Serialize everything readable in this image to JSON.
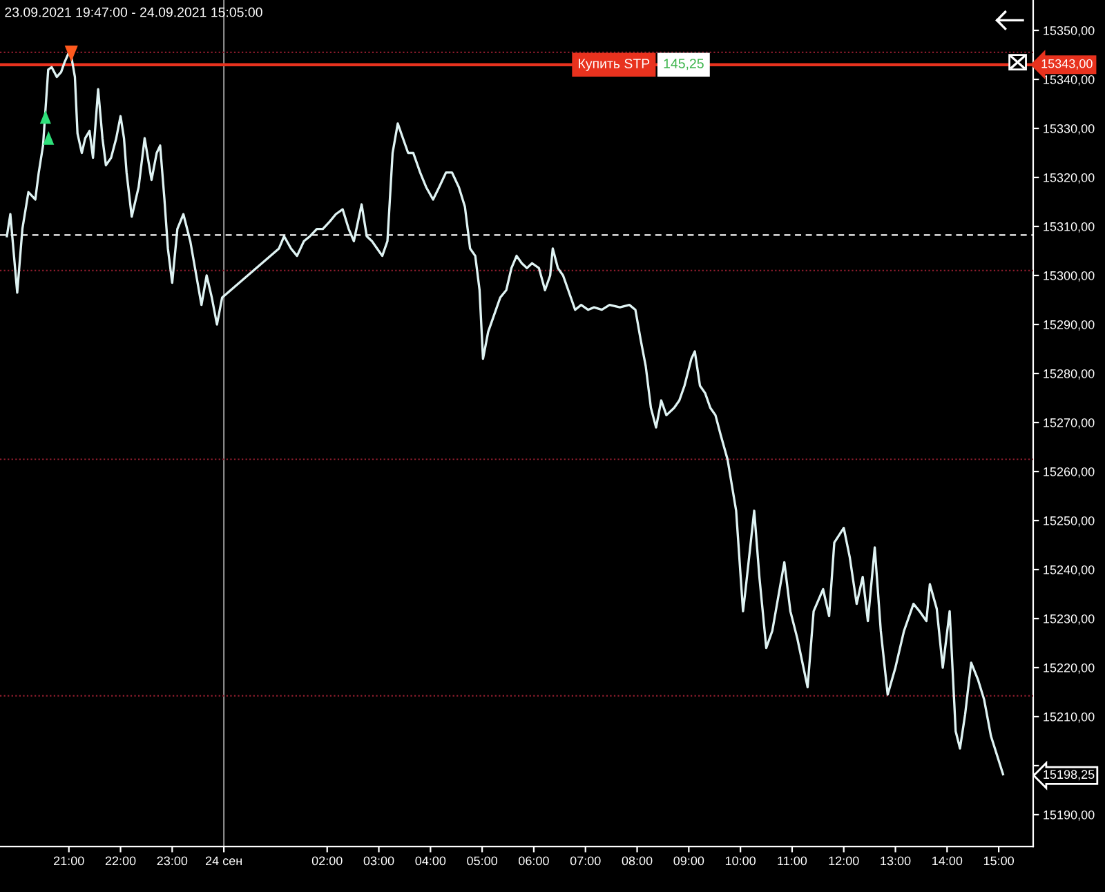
{
  "chart_data": {
    "type": "line",
    "title": "23.09.2021 19:47:00 - 24.09.2021 15:05:00",
    "x": [
      "2021-09-23T19:48",
      "2021-09-23T19:52",
      "2021-09-23T20:00",
      "2021-09-23T20:06",
      "2021-09-23T20:13",
      "2021-09-23T20:21",
      "2021-09-23T20:25",
      "2021-09-23T20:30",
      "2021-09-23T20:36",
      "2021-09-23T20:40",
      "2021-09-23T20:46",
      "2021-09-23T20:51",
      "2021-09-23T20:55",
      "2021-09-23T21:00",
      "2021-09-23T21:03",
      "2021-09-23T21:07",
      "2021-09-23T21:10",
      "2021-09-23T21:15",
      "2021-09-23T21:19",
      "2021-09-23T21:24",
      "2021-09-23T21:28",
      "2021-09-23T21:34",
      "2021-09-23T21:39",
      "2021-09-23T21:43",
      "2021-09-23T21:49",
      "2021-09-23T21:55",
      "2021-09-23T22:00",
      "2021-09-23T22:04",
      "2021-09-23T22:07",
      "2021-09-23T22:13",
      "2021-09-23T22:21",
      "2021-09-23T22:28",
      "2021-09-23T22:36",
      "2021-09-23T22:42",
      "2021-09-23T22:46",
      "2021-09-23T22:51",
      "2021-09-23T22:55",
      "2021-09-23T23:00",
      "2021-09-23T23:06",
      "2021-09-23T23:13",
      "2021-09-23T23:21",
      "2021-09-23T23:28",
      "2021-09-23T23:34",
      "2021-09-23T23:40",
      "2021-09-23T23:46",
      "2021-09-23T23:52",
      "2021-09-23T23:58",
      "2021-09-24T01:04",
      "2021-09-24T01:10",
      "2021-09-24T01:18",
      "2021-09-24T01:25",
      "2021-09-24T01:33",
      "2021-09-24T01:40",
      "2021-09-24T01:48",
      "2021-09-24T01:55",
      "2021-09-24T02:03",
      "2021-09-24T02:10",
      "2021-09-24T02:18",
      "2021-09-24T02:25",
      "2021-09-24T02:31",
      "2021-09-24T02:40",
      "2021-09-24T02:46",
      "2021-09-24T02:52",
      "2021-09-24T02:58",
      "2021-09-24T03:04",
      "2021-09-24T03:10",
      "2021-09-24T03:16",
      "2021-09-24T03:22",
      "2021-09-24T03:28",
      "2021-09-24T03:34",
      "2021-09-24T03:40",
      "2021-09-24T03:48",
      "2021-09-24T03:55",
      "2021-09-24T04:03",
      "2021-09-24T04:10",
      "2021-09-24T04:18",
      "2021-09-24T04:25",
      "2021-09-24T04:33",
      "2021-09-24T04:40",
      "2021-09-24T04:46",
      "2021-09-24T04:52",
      "2021-09-24T04:57",
      "2021-09-24T05:01",
      "2021-09-24T05:07",
      "2021-09-24T05:13",
      "2021-09-24T05:21",
      "2021-09-24T05:28",
      "2021-09-24T05:34",
      "2021-09-24T05:40",
      "2021-09-24T05:46",
      "2021-09-24T05:52",
      "2021-09-24T05:58",
      "2021-09-24T06:06",
      "2021-09-24T06:13",
      "2021-09-24T06:19",
      "2021-09-24T06:22",
      "2021-09-24T06:28",
      "2021-09-24T06:34",
      "2021-09-24T06:40",
      "2021-09-24T06:48",
      "2021-09-24T06:55",
      "2021-09-24T07:03",
      "2021-09-24T07:10",
      "2021-09-24T07:19",
      "2021-09-24T07:28",
      "2021-09-24T07:40",
      "2021-09-24T07:51",
      "2021-09-24T07:58",
      "2021-09-24T08:04",
      "2021-09-24T08:10",
      "2021-09-24T08:16",
      "2021-09-24T08:22",
      "2021-09-24T08:28",
      "2021-09-24T08:34",
      "2021-09-24T08:43",
      "2021-09-24T08:49",
      "2021-09-24T08:55",
      "2021-09-24T09:03",
      "2021-09-24T09:07",
      "2021-09-24T09:13",
      "2021-09-24T09:19",
      "2021-09-24T09:25",
      "2021-09-24T09:31",
      "2021-09-24T09:37",
      "2021-09-24T09:45",
      "2021-09-24T09:55",
      "2021-09-24T10:03",
      "2021-09-24T10:06",
      "2021-09-24T10:16",
      "2021-09-24T10:22",
      "2021-09-24T10:30",
      "2021-09-24T10:37",
      "2021-09-24T10:51",
      "2021-09-24T10:58",
      "2021-09-24T11:06",
      "2021-09-24T11:18",
      "2021-09-24T11:25",
      "2021-09-24T11:36",
      "2021-09-24T11:43",
      "2021-09-24T11:49",
      "2021-09-24T12:00",
      "2021-09-24T12:07",
      "2021-09-24T12:15",
      "2021-09-24T12:22",
      "2021-09-24T12:28",
      "2021-09-24T12:36",
      "2021-09-24T12:43",
      "2021-09-24T12:51",
      "2021-09-24T13:00",
      "2021-09-24T13:10",
      "2021-09-24T13:21",
      "2021-09-24T13:28",
      "2021-09-24T13:36",
      "2021-09-24T13:40",
      "2021-09-24T13:48",
      "2021-09-24T13:55",
      "2021-09-24T14:03",
      "2021-09-24T14:10",
      "2021-09-24T14:15",
      "2021-09-24T14:21",
      "2021-09-24T14:28",
      "2021-09-24T14:36",
      "2021-09-24T14:43",
      "2021-09-24T14:51",
      "2021-09-24T15:05"
    ],
    "series": [
      {
        "color": "#dff3f3",
        "values": [
          15308,
          15312.5,
          15296.5,
          15309.5,
          15317,
          15315.5,
          15321,
          15326.5,
          15342,
          15342.5,
          15340.5,
          15341.5,
          15343.5,
          15345.5,
          15344.5,
          15340.5,
          15329,
          15325,
          15328,
          15329.5,
          15324,
          15338,
          15328,
          15322.5,
          15324,
          15328,
          15332.5,
          15328,
          15321,
          15312,
          15318,
          15328,
          15319.5,
          15325,
          15326.5,
          15315.5,
          15305.5,
          15298.5,
          15309.5,
          15312.5,
          15307,
          15300,
          15294,
          15300,
          15295.5,
          15290,
          15295.5,
          15305.5,
          15308,
          15305.5,
          15304,
          15307,
          15308,
          15309.5,
          15309.5,
          15311,
          15312.5,
          15313.5,
          15309.5,
          15307,
          15314.5,
          15308,
          15307,
          15305.5,
          15304,
          15307,
          15325,
          15331,
          15328,
          15325,
          15325,
          15321,
          15318,
          15315.5,
          15318,
          15321,
          15321,
          15318,
          15314,
          15305.5,
          15304,
          15297,
          15283,
          15288.5,
          15291.5,
          15295.5,
          15297,
          15301.5,
          15304,
          15302.5,
          15301.5,
          15302.5,
          15301.5,
          15297,
          15300,
          15305.5,
          15301.5,
          15300,
          15297,
          15293,
          15294,
          15293,
          15293.5,
          15293,
          15294,
          15293.5,
          15294,
          15293,
          15287,
          15281.5,
          15273,
          15269,
          15274.5,
          15271.5,
          15273,
          15274.5,
          15277.5,
          15283,
          15284.5,
          15277.5,
          15276,
          15273,
          15271.5,
          15267.5,
          15262.5,
          15252,
          15231.5,
          15236,
          15252,
          15238.5,
          15224,
          15227.5,
          15241.5,
          15231.5,
          15226,
          15216,
          15231.5,
          15236,
          15230.5,
          15245.5,
          15248.5,
          15242.5,
          15233,
          15238.5,
          15229.5,
          15244.5,
          15227.5,
          15214.5,
          15220,
          15227.5,
          15233,
          15231.5,
          15229.5,
          15237,
          15232,
          15220,
          15231.5,
          15207,
          15203.5,
          15210.5,
          15221,
          15217.5,
          15213.5,
          15206,
          15198.25
        ]
      }
    ],
    "xlim": [
      "2021-09-23T19:40",
      "2021-09-24T15:40"
    ],
    "xticks": [
      {
        "value": "2021-09-23T21:00",
        "label": "21:00"
      },
      {
        "value": "2021-09-23T22:00",
        "label": "22:00"
      },
      {
        "value": "2021-09-23T23:00",
        "label": "23:00"
      },
      {
        "value": "2021-09-24T00:00",
        "label": "24 сен"
      },
      {
        "value": "2021-09-24T02:00",
        "label": "02:00"
      },
      {
        "value": "2021-09-24T03:00",
        "label": "03:00"
      },
      {
        "value": "2021-09-24T04:00",
        "label": "04:00"
      },
      {
        "value": "2021-09-24T05:00",
        "label": "05:00"
      },
      {
        "value": "2021-09-24T06:00",
        "label": "06:00"
      },
      {
        "value": "2021-09-24T07:00",
        "label": "07:00"
      },
      {
        "value": "2021-09-24T08:00",
        "label": "08:00"
      },
      {
        "value": "2021-09-24T09:00",
        "label": "09:00"
      },
      {
        "value": "2021-09-24T10:00",
        "label": "10:00"
      },
      {
        "value": "2021-09-24T11:00",
        "label": "11:00"
      },
      {
        "value": "2021-09-24T12:00",
        "label": "12:00"
      },
      {
        "value": "2021-09-24T13:00",
        "label": "13:00"
      },
      {
        "value": "2021-09-24T14:00",
        "label": "14:00"
      },
      {
        "value": "2021-09-24T15:00",
        "label": "15:00"
      }
    ],
    "ylim": [
      15183.5,
      15356.2
    ],
    "yticks": [
      {
        "value": 15190,
        "label": "15190,00"
      },
      {
        "value": 15198.25,
        "label": "15198,25"
      },
      {
        "value": 15200,
        "label": null
      },
      {
        "value": 15210,
        "label": "15210,00"
      },
      {
        "value": 15220,
        "label": "15220,00"
      },
      {
        "value": 15230,
        "label": "15230,00"
      },
      {
        "value": 15240,
        "label": "15240,00"
      },
      {
        "value": 15250,
        "label": "15250,00"
      },
      {
        "value": 15260,
        "label": "15260,00"
      },
      {
        "value": 15270,
        "label": "15270,00"
      },
      {
        "value": 15280,
        "label": "15280,00"
      },
      {
        "value": 15290,
        "label": "15290,00"
      },
      {
        "value": 15300,
        "label": "15300,00"
      },
      {
        "value": 15310,
        "label": "15310,00"
      },
      {
        "value": 15320,
        "label": "15320,00"
      },
      {
        "value": 15330,
        "label": "15330,00"
      },
      {
        "value": 15340,
        "label": "15340,00"
      },
      {
        "value": 15350,
        "label": "15350,00"
      }
    ],
    "ref_lines": [
      {
        "axis": "y",
        "value": 15345.5,
        "color": "#8b1c2c",
        "line_style": "dotted"
      },
      {
        "axis": "y",
        "value": 15301,
        "color": "#8b1c2c",
        "line_style": "dotted"
      },
      {
        "axis": "y",
        "value": 15262.5,
        "color": "#8b1c2c",
        "line_style": "dotted"
      },
      {
        "axis": "y",
        "value": 15214.25,
        "color": "#8b1c2c",
        "line_style": "dotted"
      },
      {
        "axis": "y",
        "value": 15308.25,
        "color": "#ffffff",
        "line_style": "dashed"
      },
      {
        "axis": "x",
        "value": "2021-09-24T00:00",
        "color": "#8a8a8a",
        "line_style": "solid"
      },
      {
        "axis": "y",
        "value": 15343,
        "label": "15343,00",
        "color": "#e8321e",
        "line_style": "solid"
      }
    ],
    "annotations": [
      {
        "text": "Купить STP",
        "x": "2021-09-24T07:33",
        "y": 15343
      },
      {
        "text": "145,25",
        "x": "2021-09-24T08:54",
        "y": 15343
      }
    ],
    "grid": false,
    "legend": false,
    "marker": "none",
    "line_style": "solid"
  }
}
